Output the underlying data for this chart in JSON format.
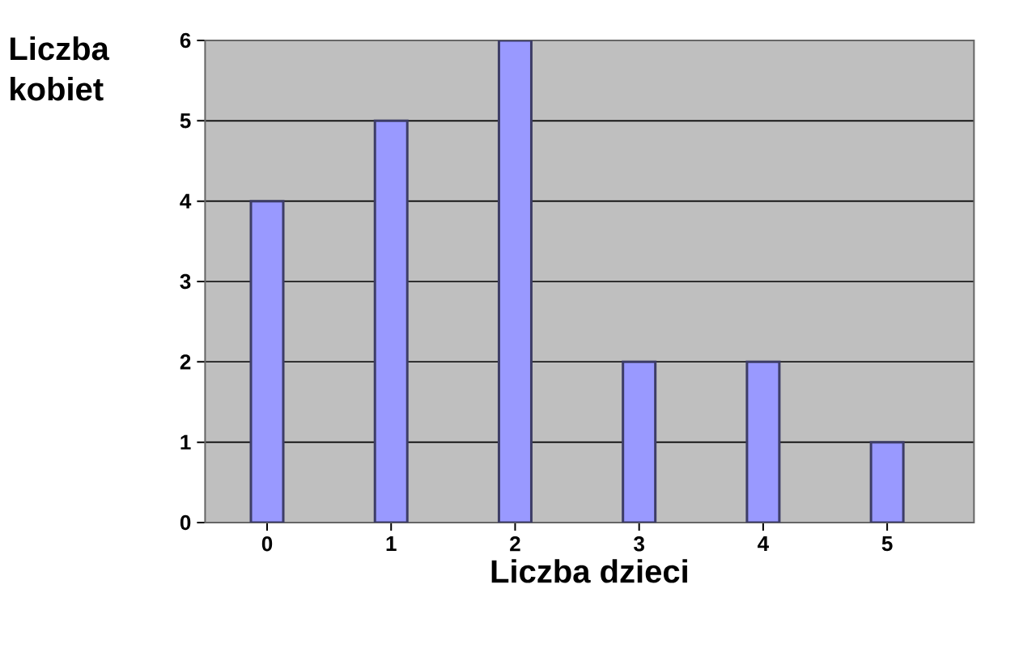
{
  "chart_data": {
    "type": "bar",
    "xlabel": "Liczba dzieci",
    "ylabel": "Liczba kobiet",
    "categories": [
      "0",
      "1",
      "2",
      "3",
      "4",
      "5"
    ],
    "values": [
      4,
      5,
      6,
      2,
      2,
      1
    ],
    "color": "#9999ff",
    "ylim": [
      0,
      6
    ],
    "yticks": [
      0,
      1,
      2,
      3,
      4,
      5,
      6
    ],
    "grid": "y"
  }
}
